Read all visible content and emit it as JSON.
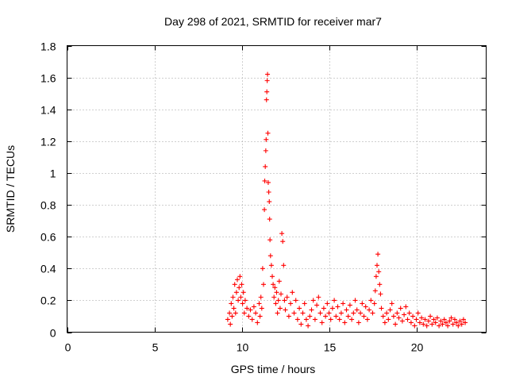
{
  "chart_data": {
    "type": "scatter",
    "title": "Day 298 of 2021, SRMTID for receiver mar7",
    "xlabel": "GPS time / hours",
    "ylabel": "SRMTID / TECUs",
    "xlim": [
      0,
      24
    ],
    "ylim": [
      0,
      1.8
    ],
    "x_ticks": [
      0,
      5,
      10,
      15,
      20
    ],
    "x_tick_labels": [
      "0",
      "5",
      "10",
      "15",
      "20"
    ],
    "y_ticks": [
      0,
      0.2,
      0.4,
      0.6,
      0.8,
      1.0,
      1.2,
      1.4,
      1.6,
      1.8
    ],
    "y_tick_labels": [
      "0",
      "0.2",
      "0.4",
      "0.6",
      "0.8",
      "1",
      "1.2",
      "1.4",
      "1.6",
      "1.8"
    ],
    "grid": true,
    "marker": "plus",
    "color": "#ff0000",
    "legend": "none",
    "series": [
      {
        "points": [
          [
            9.2,
            0.08
          ],
          [
            9.3,
            0.12
          ],
          [
            9.35,
            0.05
          ],
          [
            9.4,
            0.18
          ],
          [
            9.45,
            0.1
          ],
          [
            9.5,
            0.22
          ],
          [
            9.55,
            0.15
          ],
          [
            9.6,
            0.3
          ],
          [
            9.65,
            0.12
          ],
          [
            9.7,
            0.25
          ],
          [
            9.75,
            0.33
          ],
          [
            9.8,
            0.2
          ],
          [
            9.85,
            0.28
          ],
          [
            9.9,
            0.35
          ],
          [
            9.95,
            0.22
          ],
          [
            10.0,
            0.3
          ],
          [
            10.05,
            0.18
          ],
          [
            10.1,
            0.25
          ],
          [
            10.15,
            0.12
          ],
          [
            10.2,
            0.2
          ],
          [
            10.3,
            0.15
          ],
          [
            10.4,
            0.1
          ],
          [
            10.5,
            0.14
          ],
          [
            10.6,
            0.08
          ],
          [
            10.7,
            0.16
          ],
          [
            10.8,
            0.12
          ],
          [
            10.9,
            0.06
          ],
          [
            11.0,
            0.18
          ],
          [
            11.05,
            0.1
          ],
          [
            11.1,
            0.22
          ],
          [
            11.15,
            0.15
          ],
          [
            11.2,
            0.4
          ],
          [
            11.25,
            0.3
          ],
          [
            11.3,
            0.77
          ],
          [
            11.32,
            0.95
          ],
          [
            11.35,
            1.04
          ],
          [
            11.38,
            1.14
          ],
          [
            11.4,
            1.21
          ],
          [
            11.42,
            1.46
          ],
          [
            11.44,
            1.51
          ],
          [
            11.46,
            1.58
          ],
          [
            11.48,
            1.62
          ],
          [
            11.5,
            1.25
          ],
          [
            11.52,
            0.94
          ],
          [
            11.55,
            0.88
          ],
          [
            11.58,
            0.82
          ],
          [
            11.6,
            0.71
          ],
          [
            11.62,
            0.58
          ],
          [
            11.65,
            0.48
          ],
          [
            11.7,
            0.42
          ],
          [
            11.75,
            0.35
          ],
          [
            11.8,
            0.3
          ],
          [
            11.85,
            0.22
          ],
          [
            11.9,
            0.28
          ],
          [
            11.95,
            0.18
          ],
          [
            12.0,
            0.25
          ],
          [
            12.05,
            0.12
          ],
          [
            12.1,
            0.2
          ],
          [
            12.15,
            0.32
          ],
          [
            12.2,
            0.15
          ],
          [
            12.25,
            0.24
          ],
          [
            12.3,
            0.62
          ],
          [
            12.35,
            0.57
          ],
          [
            12.4,
            0.42
          ],
          [
            12.45,
            0.2
          ],
          [
            12.5,
            0.14
          ],
          [
            12.6,
            0.22
          ],
          [
            12.7,
            0.1
          ],
          [
            12.8,
            0.18
          ],
          [
            12.9,
            0.25
          ],
          [
            13.0,
            0.12
          ],
          [
            13.1,
            0.2
          ],
          [
            13.2,
            0.08
          ],
          [
            13.3,
            0.15
          ],
          [
            13.4,
            0.05
          ],
          [
            13.5,
            0.12
          ],
          [
            13.6,
            0.18
          ],
          [
            13.7,
            0.08
          ],
          [
            13.8,
            0.04
          ],
          [
            13.9,
            0.1
          ],
          [
            14.0,
            0.14
          ],
          [
            14.1,
            0.2
          ],
          [
            14.2,
            0.08
          ],
          [
            14.3,
            0.17
          ],
          [
            14.4,
            0.22
          ],
          [
            14.5,
            0.12
          ],
          [
            14.6,
            0.06
          ],
          [
            14.7,
            0.15
          ],
          [
            14.8,
            0.1
          ],
          [
            14.9,
            0.18
          ],
          [
            15.0,
            0.12
          ],
          [
            15.1,
            0.08
          ],
          [
            15.2,
            0.15
          ],
          [
            15.3,
            0.2
          ],
          [
            15.4,
            0.1
          ],
          [
            15.5,
            0.16
          ],
          [
            15.6,
            0.08
          ],
          [
            15.7,
            0.12
          ],
          [
            15.8,
            0.18
          ],
          [
            15.9,
            0.06
          ],
          [
            16.0,
            0.14
          ],
          [
            16.1,
            0.1
          ],
          [
            16.2,
            0.17
          ],
          [
            16.3,
            0.08
          ],
          [
            16.4,
            0.12
          ],
          [
            16.5,
            0.2
          ],
          [
            16.6,
            0.14
          ],
          [
            16.7,
            0.06
          ],
          [
            16.8,
            0.12
          ],
          [
            16.9,
            0.18
          ],
          [
            17.0,
            0.1
          ],
          [
            17.1,
            0.16
          ],
          [
            17.2,
            0.08
          ],
          [
            17.3,
            0.14
          ],
          [
            17.4,
            0.2
          ],
          [
            17.5,
            0.12
          ],
          [
            17.6,
            0.18
          ],
          [
            17.65,
            0.26
          ],
          [
            17.7,
            0.35
          ],
          [
            17.75,
            0.42
          ],
          [
            17.8,
            0.49
          ],
          [
            17.85,
            0.38
          ],
          [
            17.9,
            0.3
          ],
          [
            17.95,
            0.24
          ],
          [
            18.0,
            0.15
          ],
          [
            18.1,
            0.1
          ],
          [
            18.2,
            0.06
          ],
          [
            18.3,
            0.12
          ],
          [
            18.4,
            0.08
          ],
          [
            18.5,
            0.14
          ],
          [
            18.6,
            0.18
          ],
          [
            18.7,
            0.1
          ],
          [
            18.8,
            0.05
          ],
          [
            18.9,
            0.12
          ],
          [
            19.0,
            0.09
          ],
          [
            19.1,
            0.15
          ],
          [
            19.2,
            0.07
          ],
          [
            19.3,
            0.11
          ],
          [
            19.4,
            0.16
          ],
          [
            19.5,
            0.08
          ],
          [
            19.6,
            0.12
          ],
          [
            19.7,
            0.06
          ],
          [
            19.8,
            0.1
          ],
          [
            19.9,
            0.04
          ],
          [
            20.0,
            0.08
          ],
          [
            20.1,
            0.12
          ],
          [
            20.2,
            0.06
          ],
          [
            20.3,
            0.09
          ],
          [
            20.4,
            0.05
          ],
          [
            20.5,
            0.08
          ],
          [
            20.6,
            0.04
          ],
          [
            20.7,
            0.07
          ],
          [
            20.8,
            0.1
          ],
          [
            20.9,
            0.05
          ],
          [
            21.0,
            0.08
          ],
          [
            21.1,
            0.06
          ],
          [
            21.2,
            0.09
          ],
          [
            21.3,
            0.04
          ],
          [
            21.4,
            0.07
          ],
          [
            21.5,
            0.05
          ],
          [
            21.6,
            0.08
          ],
          [
            21.7,
            0.06
          ],
          [
            21.8,
            0.04
          ],
          [
            21.9,
            0.07
          ],
          [
            22.0,
            0.09
          ],
          [
            22.1,
            0.05
          ],
          [
            22.2,
            0.08
          ],
          [
            22.3,
            0.06
          ],
          [
            22.4,
            0.04
          ],
          [
            22.5,
            0.07
          ],
          [
            22.6,
            0.05
          ],
          [
            22.7,
            0.08
          ],
          [
            22.8,
            0.06
          ]
        ]
      }
    ]
  }
}
